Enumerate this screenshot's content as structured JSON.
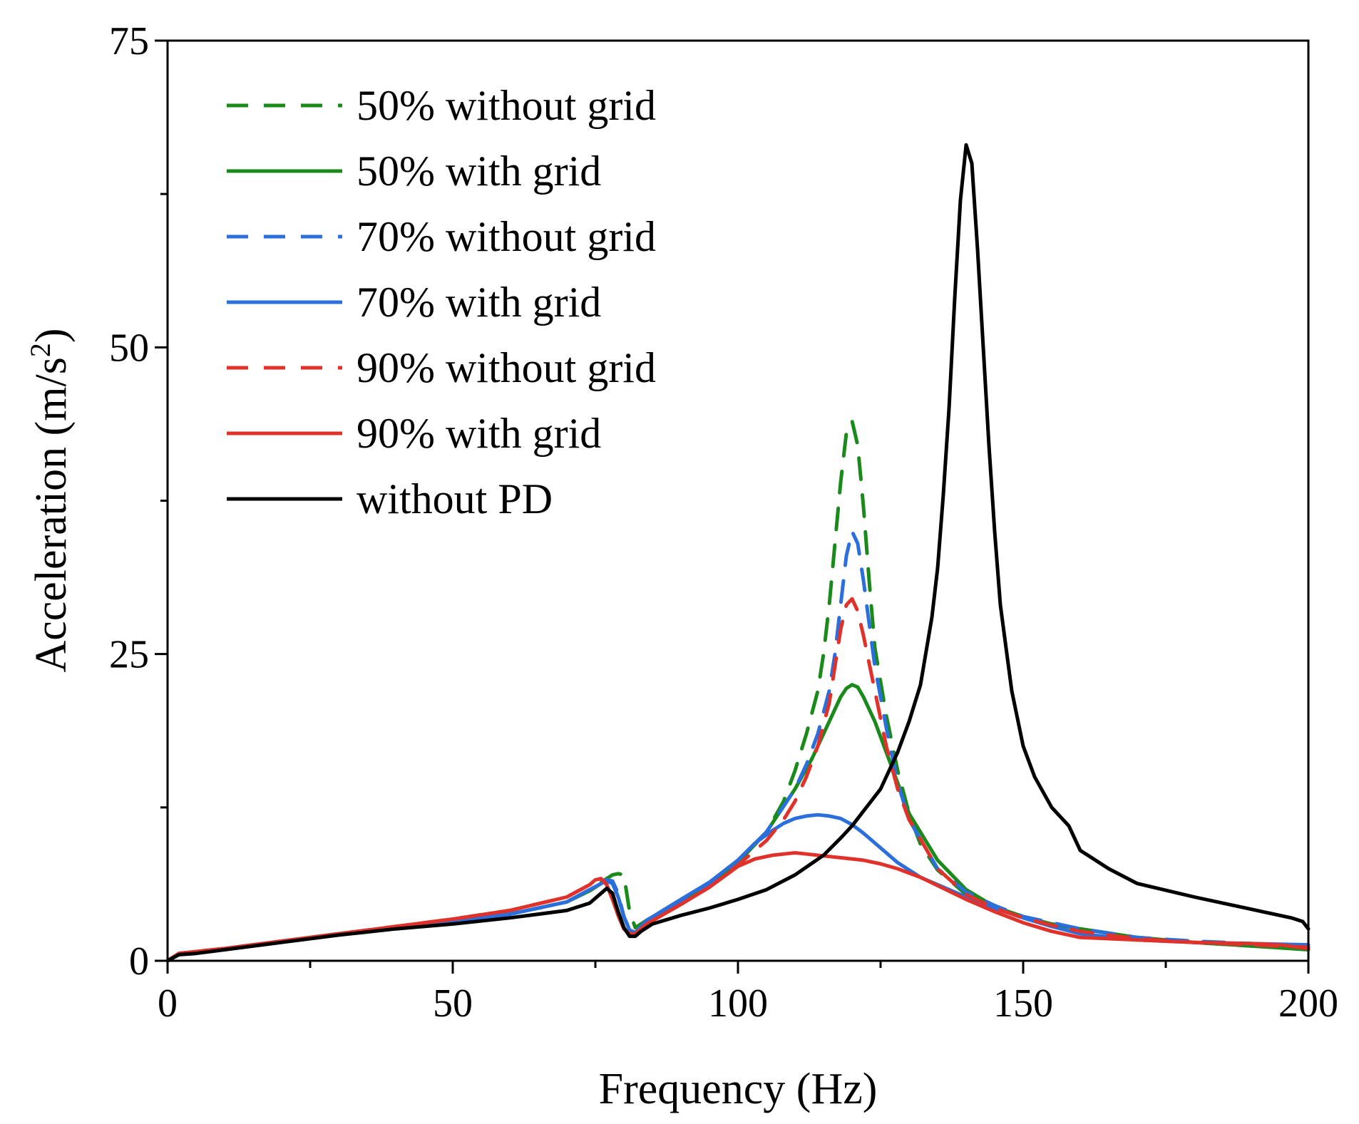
{
  "chart_data": {
    "type": "line",
    "title": "",
    "xlabel": "Frequency (Hz)",
    "ylabel_main": "Acceleration (m/s",
    "ylabel_sup": "2",
    "ylabel_tail": ")",
    "xlim": [
      0,
      200
    ],
    "ylim": [
      0,
      75
    ],
    "xticks": [
      0,
      50,
      100,
      150,
      200
    ],
    "yticks": [
      0,
      25,
      50,
      75
    ],
    "xtick_labels": [
      "0",
      "50",
      "100",
      "150",
      "200"
    ],
    "ytick_labels": [
      "0",
      "25",
      "50",
      "75"
    ],
    "xminor": [
      25,
      75,
      125,
      175
    ],
    "yminor": [
      12.5,
      37.5,
      62.5
    ],
    "grid": false,
    "legend_position": "top-left",
    "series": [
      {
        "name": "50% without grid",
        "color": "#1a8a1a",
        "dash": "dashed",
        "x": [
          0,
          2,
          10,
          20,
          30,
          40,
          50,
          60,
          70,
          74,
          76,
          78,
          79,
          80,
          81,
          82,
          83,
          85,
          90,
          95,
          100,
          105,
          108,
          110,
          112,
          114,
          115,
          116,
          117,
          118,
          119,
          120,
          121,
          122,
          123,
          124,
          126,
          128,
          130,
          132,
          135,
          140,
          145,
          150,
          155,
          160,
          170,
          180,
          190,
          195,
          200
        ],
        "y": [
          0,
          0.6,
          1,
          1.6,
          2.2,
          2.7,
          3.2,
          3.8,
          4.8,
          5.8,
          6.4,
          7,
          7.1,
          7,
          4,
          2.7,
          3,
          3.6,
          4.8,
          6.2,
          8,
          10.5,
          13,
          15.5,
          18.5,
          22,
          25,
          29,
          34,
          39,
          43,
          44,
          42,
          37,
          31,
          25.5,
          20,
          15.5,
          12,
          9.5,
          7.4,
          5.4,
          4.3,
          3.6,
          3,
          2.6,
          1.9,
          1.5,
          1.2,
          1.1,
          0.9
        ]
      },
      {
        "name": "50% with grid",
        "color": "#1a8a1a",
        "dash": "solid",
        "x": [
          0,
          2,
          10,
          20,
          30,
          40,
          50,
          60,
          70,
          74,
          76,
          77,
          78,
          79,
          80,
          81,
          82,
          84,
          90,
          95,
          100,
          105,
          110,
          113,
          115,
          117,
          118,
          119,
          120,
          121,
          122,
          124,
          126,
          128,
          130,
          135,
          140,
          145,
          150,
          155,
          160,
          170,
          180,
          190,
          200
        ],
        "y": [
          0,
          0.6,
          1,
          1.6,
          2.2,
          2.7,
          3.2,
          3.8,
          4.8,
          5.7,
          6.3,
          6.6,
          6.4,
          5.2,
          3.6,
          2.5,
          2.3,
          3.2,
          4.8,
          6.2,
          8,
          10.5,
          14,
          16.5,
          18.5,
          20.5,
          21.5,
          22.2,
          22.5,
          22.3,
          21.5,
          19.5,
          17,
          14.5,
          12,
          8.2,
          5.8,
          4.4,
          3.6,
          3,
          2.6,
          1.9,
          1.5,
          1.2,
          0.9
        ]
      },
      {
        "name": "70% without grid",
        "color": "#2a6fdb",
        "dash": "dashed",
        "x": [
          0,
          2,
          10,
          20,
          30,
          40,
          50,
          60,
          70,
          74,
          76,
          77,
          78,
          79,
          80,
          81,
          82,
          84,
          90,
          95,
          100,
          105,
          110,
          112,
          114,
          116,
          117,
          118,
          119,
          120,
          121,
          122,
          123,
          124,
          126,
          128,
          130,
          135,
          140,
          145,
          150,
          155,
          160,
          170,
          180,
          190,
          195,
          200
        ],
        "y": [
          0,
          0.6,
          1,
          1.6,
          2.2,
          2.7,
          3.2,
          3.8,
          4.8,
          5.8,
          6.3,
          6.6,
          6.5,
          5.5,
          3.6,
          2.5,
          2.3,
          3.3,
          4.9,
          6.3,
          8.2,
          10.5,
          14,
          16,
          18.5,
          22,
          25,
          29,
          33,
          35,
          34,
          31,
          27.5,
          24,
          19,
          14.5,
          11.5,
          7.5,
          5.6,
          4.5,
          3.6,
          3.1,
          2.6,
          1.9,
          1.6,
          1.4,
          1.3,
          1.2
        ]
      },
      {
        "name": "70% with grid",
        "color": "#2a6fdb",
        "dash": "solid",
        "x": [
          0,
          2,
          10,
          20,
          30,
          40,
          50,
          60,
          70,
          74,
          76,
          77,
          78,
          79,
          80,
          81,
          82,
          84,
          90,
          95,
          100,
          103,
          106,
          108,
          110,
          112,
          114,
          116,
          118,
          120,
          122,
          125,
          128,
          132,
          136,
          140,
          145,
          150,
          155,
          160,
          170,
          180,
          190,
          200
        ],
        "y": [
          0,
          0.6,
          1,
          1.6,
          2.2,
          2.7,
          3.2,
          3.8,
          4.8,
          5.8,
          6.3,
          6.5,
          6.3,
          5.2,
          3.6,
          2.5,
          2.3,
          3.3,
          5,
          6.4,
          8.2,
          9.6,
          10.6,
          11.2,
          11.6,
          11.8,
          11.9,
          11.8,
          11.6,
          11.1,
          10.4,
          9.2,
          8,
          6.8,
          6,
          5.2,
          4.3,
          3.5,
          2.8,
          2.2,
          1.7,
          1.5,
          1.4,
          1.3
        ]
      },
      {
        "name": "90% without grid",
        "color": "#e0322a",
        "dash": "dashed",
        "x": [
          0,
          2,
          10,
          20,
          30,
          40,
          50,
          60,
          70,
          74,
          75,
          76,
          77,
          78,
          79,
          80,
          81,
          82,
          84,
          90,
          95,
          100,
          105,
          108,
          110,
          112,
          114,
          116,
          117,
          118,
          119,
          120,
          121,
          122,
          124,
          126,
          128,
          130,
          135,
          140,
          145,
          150,
          155,
          160,
          170,
          180,
          190,
          200
        ],
        "y": [
          0,
          0.6,
          1,
          1.6,
          2.2,
          2.8,
          3.4,
          4.1,
          5.2,
          6.2,
          6.6,
          6.7,
          6.2,
          5,
          3.7,
          2.6,
          2.2,
          2.2,
          3,
          4.6,
          6,
          7.8,
          9.8,
          11.5,
          13,
          15,
          17.5,
          21,
          24,
          27,
          29,
          29.5,
          28.5,
          26.5,
          22,
          17.5,
          14,
          11.5,
          7.5,
          5.4,
          4.3,
          3.5,
          2.9,
          2.4,
          1.8,
          1.5,
          1.3,
          1.1
        ]
      },
      {
        "name": "90% with grid",
        "color": "#e0322a",
        "dash": "solid",
        "x": [
          0,
          2,
          10,
          20,
          30,
          40,
          50,
          60,
          70,
          74,
          75,
          76,
          77,
          78,
          79,
          80,
          81,
          82,
          84,
          90,
          95,
          100,
          103,
          106,
          108,
          110,
          112,
          114,
          116,
          118,
          120,
          122,
          125,
          128,
          132,
          136,
          140,
          145,
          150,
          155,
          160,
          170,
          180,
          190,
          195,
          200
        ],
        "y": [
          0,
          0.6,
          1,
          1.6,
          2.2,
          2.8,
          3.4,
          4.1,
          5.2,
          6.2,
          6.6,
          6.7,
          6.2,
          5,
          3.7,
          2.6,
          2.2,
          2.2,
          3,
          4.6,
          6,
          7.7,
          8.3,
          8.6,
          8.7,
          8.8,
          8.7,
          8.6,
          8.5,
          8.4,
          8.3,
          8.2,
          7.9,
          7.5,
          6.8,
          5.9,
          5,
          4,
          3.1,
          2.4,
          1.9,
          1.7,
          1.5,
          1.4,
          1.3,
          1.0
        ]
      },
      {
        "name": "without PD",
        "color": "#000000",
        "dash": "solid",
        "x": [
          0,
          2,
          5,
          10,
          20,
          30,
          40,
          50,
          60,
          70,
          74,
          76,
          77,
          78,
          79,
          80,
          81,
          82,
          83,
          85,
          90,
          95,
          100,
          105,
          110,
          115,
          118,
          120,
          125,
          128,
          130,
          132,
          134,
          135,
          136,
          137,
          138,
          139,
          140,
          141,
          142,
          143,
          144,
          145,
          146,
          148,
          150,
          152,
          155,
          158,
          160,
          165,
          170,
          180,
          190,
          197,
          199,
          200
        ],
        "y": [
          0,
          0.5,
          0.6,
          0.9,
          1.5,
          2.1,
          2.6,
          3,
          3.5,
          4.1,
          4.7,
          5.5,
          5.9,
          5.5,
          4,
          2.7,
          2,
          2,
          2.4,
          3,
          3.7,
          4.3,
          5,
          5.8,
          7,
          8.6,
          10,
          11,
          14,
          17,
          19.5,
          22.5,
          28,
          32,
          38,
          45,
          54,
          62,
          66.5,
          65,
          58,
          50,
          42,
          35,
          29,
          22,
          17.5,
          15,
          12.5,
          11,
          9,
          7.5,
          6.3,
          5.2,
          4.2,
          3.5,
          3.2,
          2.6
        ]
      }
    ]
  }
}
